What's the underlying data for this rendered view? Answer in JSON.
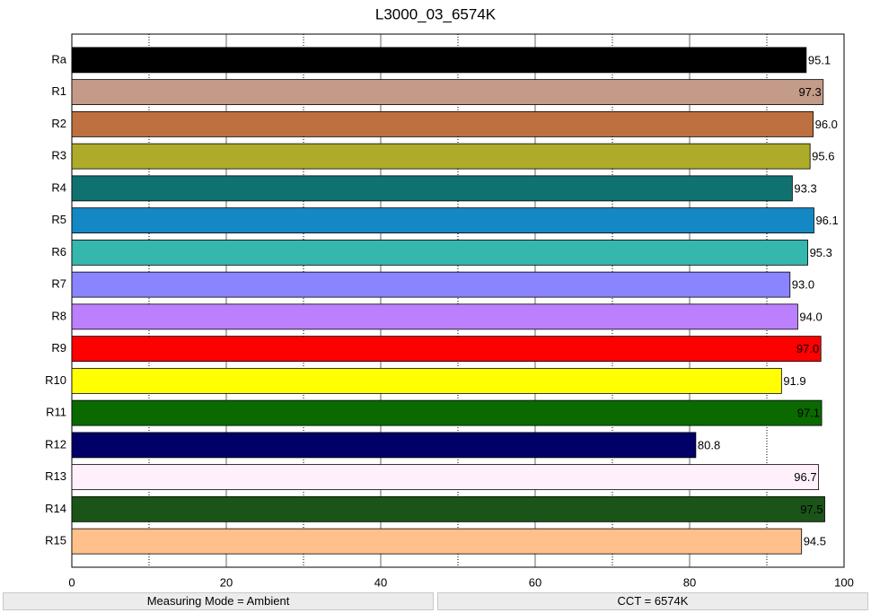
{
  "chart_data": {
    "type": "barh",
    "title": "L3000_03_6574K",
    "categories": [
      "Ra",
      "R1",
      "R2",
      "R3",
      "R4",
      "R5",
      "R6",
      "R7",
      "R8",
      "R9",
      "R10",
      "R11",
      "R12",
      "R13",
      "R14",
      "R15"
    ],
    "values": [
      95.1,
      97.3,
      96.0,
      95.6,
      93.3,
      96.1,
      95.3,
      93.0,
      94.0,
      97.0,
      91.9,
      97.1,
      80.8,
      96.7,
      97.5,
      94.5
    ],
    "value_labels": [
      "95.1",
      "97.3",
      "96.0",
      "95.6",
      "93.3",
      "96.1",
      "95.3",
      "93.0",
      "94.0",
      "97.0",
      "91.9",
      "97.1",
      "80.8",
      "96.7",
      "97.5",
      "94.5"
    ],
    "colors": [
      "#000000",
      "#c49a88",
      "#be7040",
      "#aeab2b",
      "#107270",
      "#1388c4",
      "#35b7ad",
      "#8a84ff",
      "#bc80ff",
      "#ff0000",
      "#ffff00",
      "#0a6a00",
      "#000066",
      "#fff0fc",
      "#1a5418",
      "#ffc08a"
    ],
    "xlim": [
      0,
      100
    ],
    "xticks": [
      0,
      20,
      40,
      60,
      80,
      100
    ],
    "minor_xticks": [
      10,
      30,
      50,
      70,
      90
    ],
    "grid": true
  },
  "status_bar": [
    "Measuring Mode = Ambient",
    "CCT = 6574K"
  ]
}
